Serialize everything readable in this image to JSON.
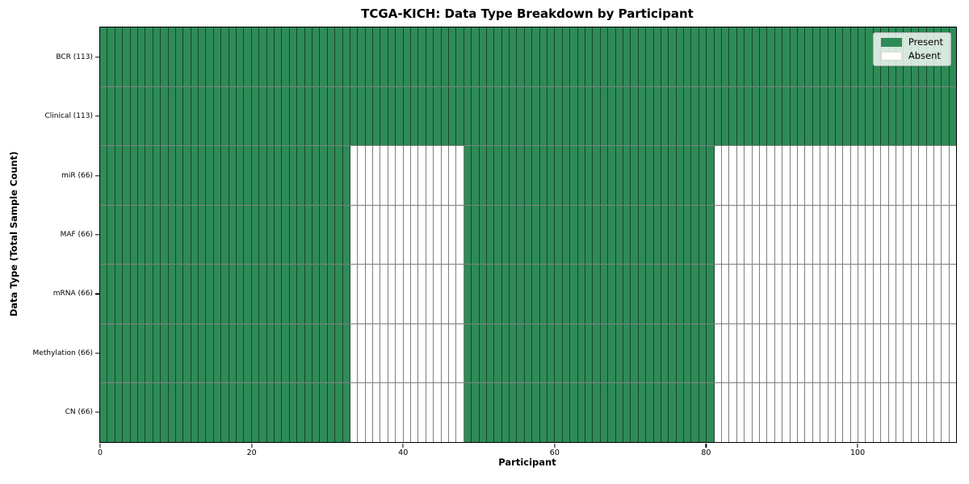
{
  "chart_data": {
    "type": "heatmap",
    "title": "TCGA-KICH: Data Type Breakdown by Participant",
    "xlabel": "Participant",
    "ylabel": "Data Type (Total Sample Count)",
    "n_participants": 113,
    "xlim": [
      0,
      113
    ],
    "x_ticks": [
      0,
      20,
      40,
      60,
      80,
      100
    ],
    "grid": false,
    "colors": {
      "present": "#2e8b57",
      "absent": "#ffffff"
    },
    "legend": {
      "position": "upper right",
      "entries": [
        {
          "label": "Present",
          "color": "#2e8b57"
        },
        {
          "label": "Absent",
          "color": "#ffffff"
        }
      ]
    },
    "rows": [
      {
        "label": "BCR (113)",
        "data_type": "BCR",
        "present_count": 113,
        "present_ranges": [
          [
            0,
            113
          ]
        ]
      },
      {
        "label": "Clinical (113)",
        "data_type": "Clinical",
        "present_count": 113,
        "present_ranges": [
          [
            0,
            113
          ]
        ]
      },
      {
        "label": "miR (66)",
        "data_type": "miR",
        "present_count": 66,
        "present_ranges": [
          [
            0,
            33
          ],
          [
            48,
            81
          ]
        ]
      },
      {
        "label": "MAF (66)",
        "data_type": "MAF",
        "present_count": 66,
        "present_ranges": [
          [
            0,
            33
          ],
          [
            48,
            81
          ]
        ]
      },
      {
        "label": "mRNA (66)",
        "data_type": "mRNA",
        "present_count": 66,
        "present_ranges": [
          [
            0,
            33
          ],
          [
            48,
            81
          ]
        ]
      },
      {
        "label": "Methylation (66)",
        "data_type": "Methylation",
        "present_count": 66,
        "present_ranges": [
          [
            0,
            33
          ],
          [
            48,
            81
          ]
        ]
      },
      {
        "label": "CN (66)",
        "data_type": "CN",
        "present_count": 66,
        "present_ranges": [
          [
            0,
            33
          ],
          [
            48,
            81
          ]
        ]
      }
    ]
  }
}
